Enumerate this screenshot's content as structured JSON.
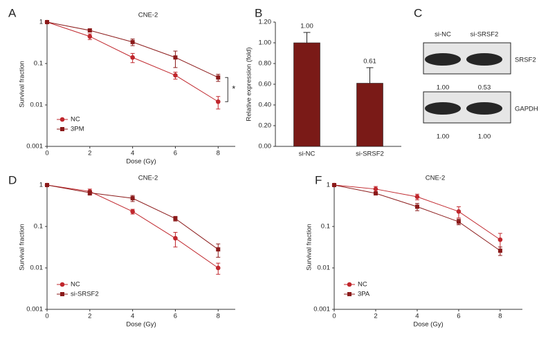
{
  "chart_data": [
    {
      "panel": "A",
      "type": "line",
      "title": "CNE-2",
      "xlabel": "Dose (Gy)",
      "ylabel": "Survival fraction",
      "log_y": true,
      "x": [
        0,
        2,
        4,
        6,
        8
      ],
      "xlim": [
        0,
        8.8
      ],
      "xticks": [
        0,
        2,
        4,
        6,
        8
      ],
      "ylim": [
        0.001,
        1
      ],
      "yticks": [
        0.001,
        0.01,
        0.1,
        1
      ],
      "annotation": "*",
      "series": [
        {
          "name": "NC",
          "color": "#c0272d",
          "marker": "circle",
          "values": [
            1,
            0.45,
            0.14,
            0.052,
            0.012
          ],
          "errors": [
            0.03,
            0.07,
            0.035,
            0.01,
            0.004
          ]
        },
        {
          "name": "3PM",
          "color": "#8b1a1a",
          "marker": "square",
          "values": [
            1,
            0.63,
            0.33,
            0.14,
            0.046
          ],
          "errors": [
            0.03,
            0.05,
            0.06,
            0.06,
            0.009
          ]
        }
      ]
    },
    {
      "panel": "B",
      "type": "bar",
      "ylabel": "Relative expression (fold)",
      "categories": [
        "si-NC",
        "si-SRSF2"
      ],
      "values": [
        1.0,
        0.61
      ],
      "value_labels": [
        "1.00",
        "0.61"
      ],
      "errors": [
        0.1,
        0.15
      ],
      "color": "#7a1a17",
      "ylim": [
        0,
        1.2
      ],
      "yticks": [
        {
          "value": 0,
          "label": "0.00"
        },
        {
          "value": 0.2,
          "label": "0.20"
        },
        {
          "value": 0.4,
          "label": "0.40"
        },
        {
          "value": 0.6,
          "label": "0.60"
        },
        {
          "value": 0.8,
          "label": "0.80"
        },
        {
          "value": 1.0,
          "label": "1.00"
        },
        {
          "value": 1.2,
          "label": "1.20"
        }
      ]
    },
    {
      "panel": "C",
      "type": "blot",
      "lanes": [
        "si-NC",
        "si-SRSF2"
      ],
      "bands": [
        {
          "name": "SRSF2",
          "values": [
            1.0,
            0.53
          ],
          "value_labels": [
            "1.00",
            "0.53"
          ]
        },
        {
          "name": "GAPDH",
          "values": [
            1.0,
            1.0
          ],
          "value_labels": [
            "1.00",
            "1.00"
          ]
        }
      ]
    },
    {
      "panel": "D",
      "type": "line",
      "title": "CNE-2",
      "xlabel": "Dose (Gy)",
      "ylabel": "Survival fraction",
      "log_y": true,
      "x": [
        0,
        2,
        4,
        6,
        8
      ],
      "xlim": [
        0,
        8.8
      ],
      "xticks": [
        0,
        2,
        4,
        6,
        8
      ],
      "ylim": [
        0.001,
        1
      ],
      "yticks": [
        0.001,
        0.01,
        0.1,
        1
      ],
      "series": [
        {
          "name": "NC",
          "color": "#c0272d",
          "marker": "circle",
          "values": [
            1,
            0.7,
            0.23,
            0.052,
            0.01
          ],
          "errors": [
            0.03,
            0.1,
            0.03,
            0.02,
            0.003
          ]
        },
        {
          "name": "si-SRSF2",
          "color": "#8b1a1a",
          "marker": "square",
          "values": [
            1,
            0.65,
            0.48,
            0.155,
            0.028
          ],
          "errors": [
            0.03,
            0.08,
            0.08,
            0.02,
            0.01
          ]
        }
      ]
    },
    {
      "panel": "F",
      "type": "line",
      "title": "CNE-2",
      "xlabel": "Dose (Gy)",
      "ylabel": "Survival fraction",
      "log_y": true,
      "x": [
        0,
        2,
        4,
        6,
        8
      ],
      "xlim": [
        0,
        9.07
      ],
      "xticks": [
        0,
        2,
        4,
        6,
        8
      ],
      "ylim": [
        0.001,
        1
      ],
      "yticks": [
        0.001,
        0.01,
        0.1,
        1
      ],
      "series": [
        {
          "name": "NC",
          "color": "#c0272d",
          "marker": "circle",
          "values": [
            1,
            0.8,
            0.52,
            0.23,
            0.048
          ],
          "errors": [
            0.03,
            0.12,
            0.08,
            0.07,
            0.02
          ]
        },
        {
          "name": "3PA",
          "color": "#8b1a1a",
          "marker": "square",
          "values": [
            1,
            0.63,
            0.3,
            0.13,
            0.026
          ],
          "errors": [
            0.03,
            0.05,
            0.06,
            0.02,
            0.006
          ]
        }
      ]
    }
  ]
}
